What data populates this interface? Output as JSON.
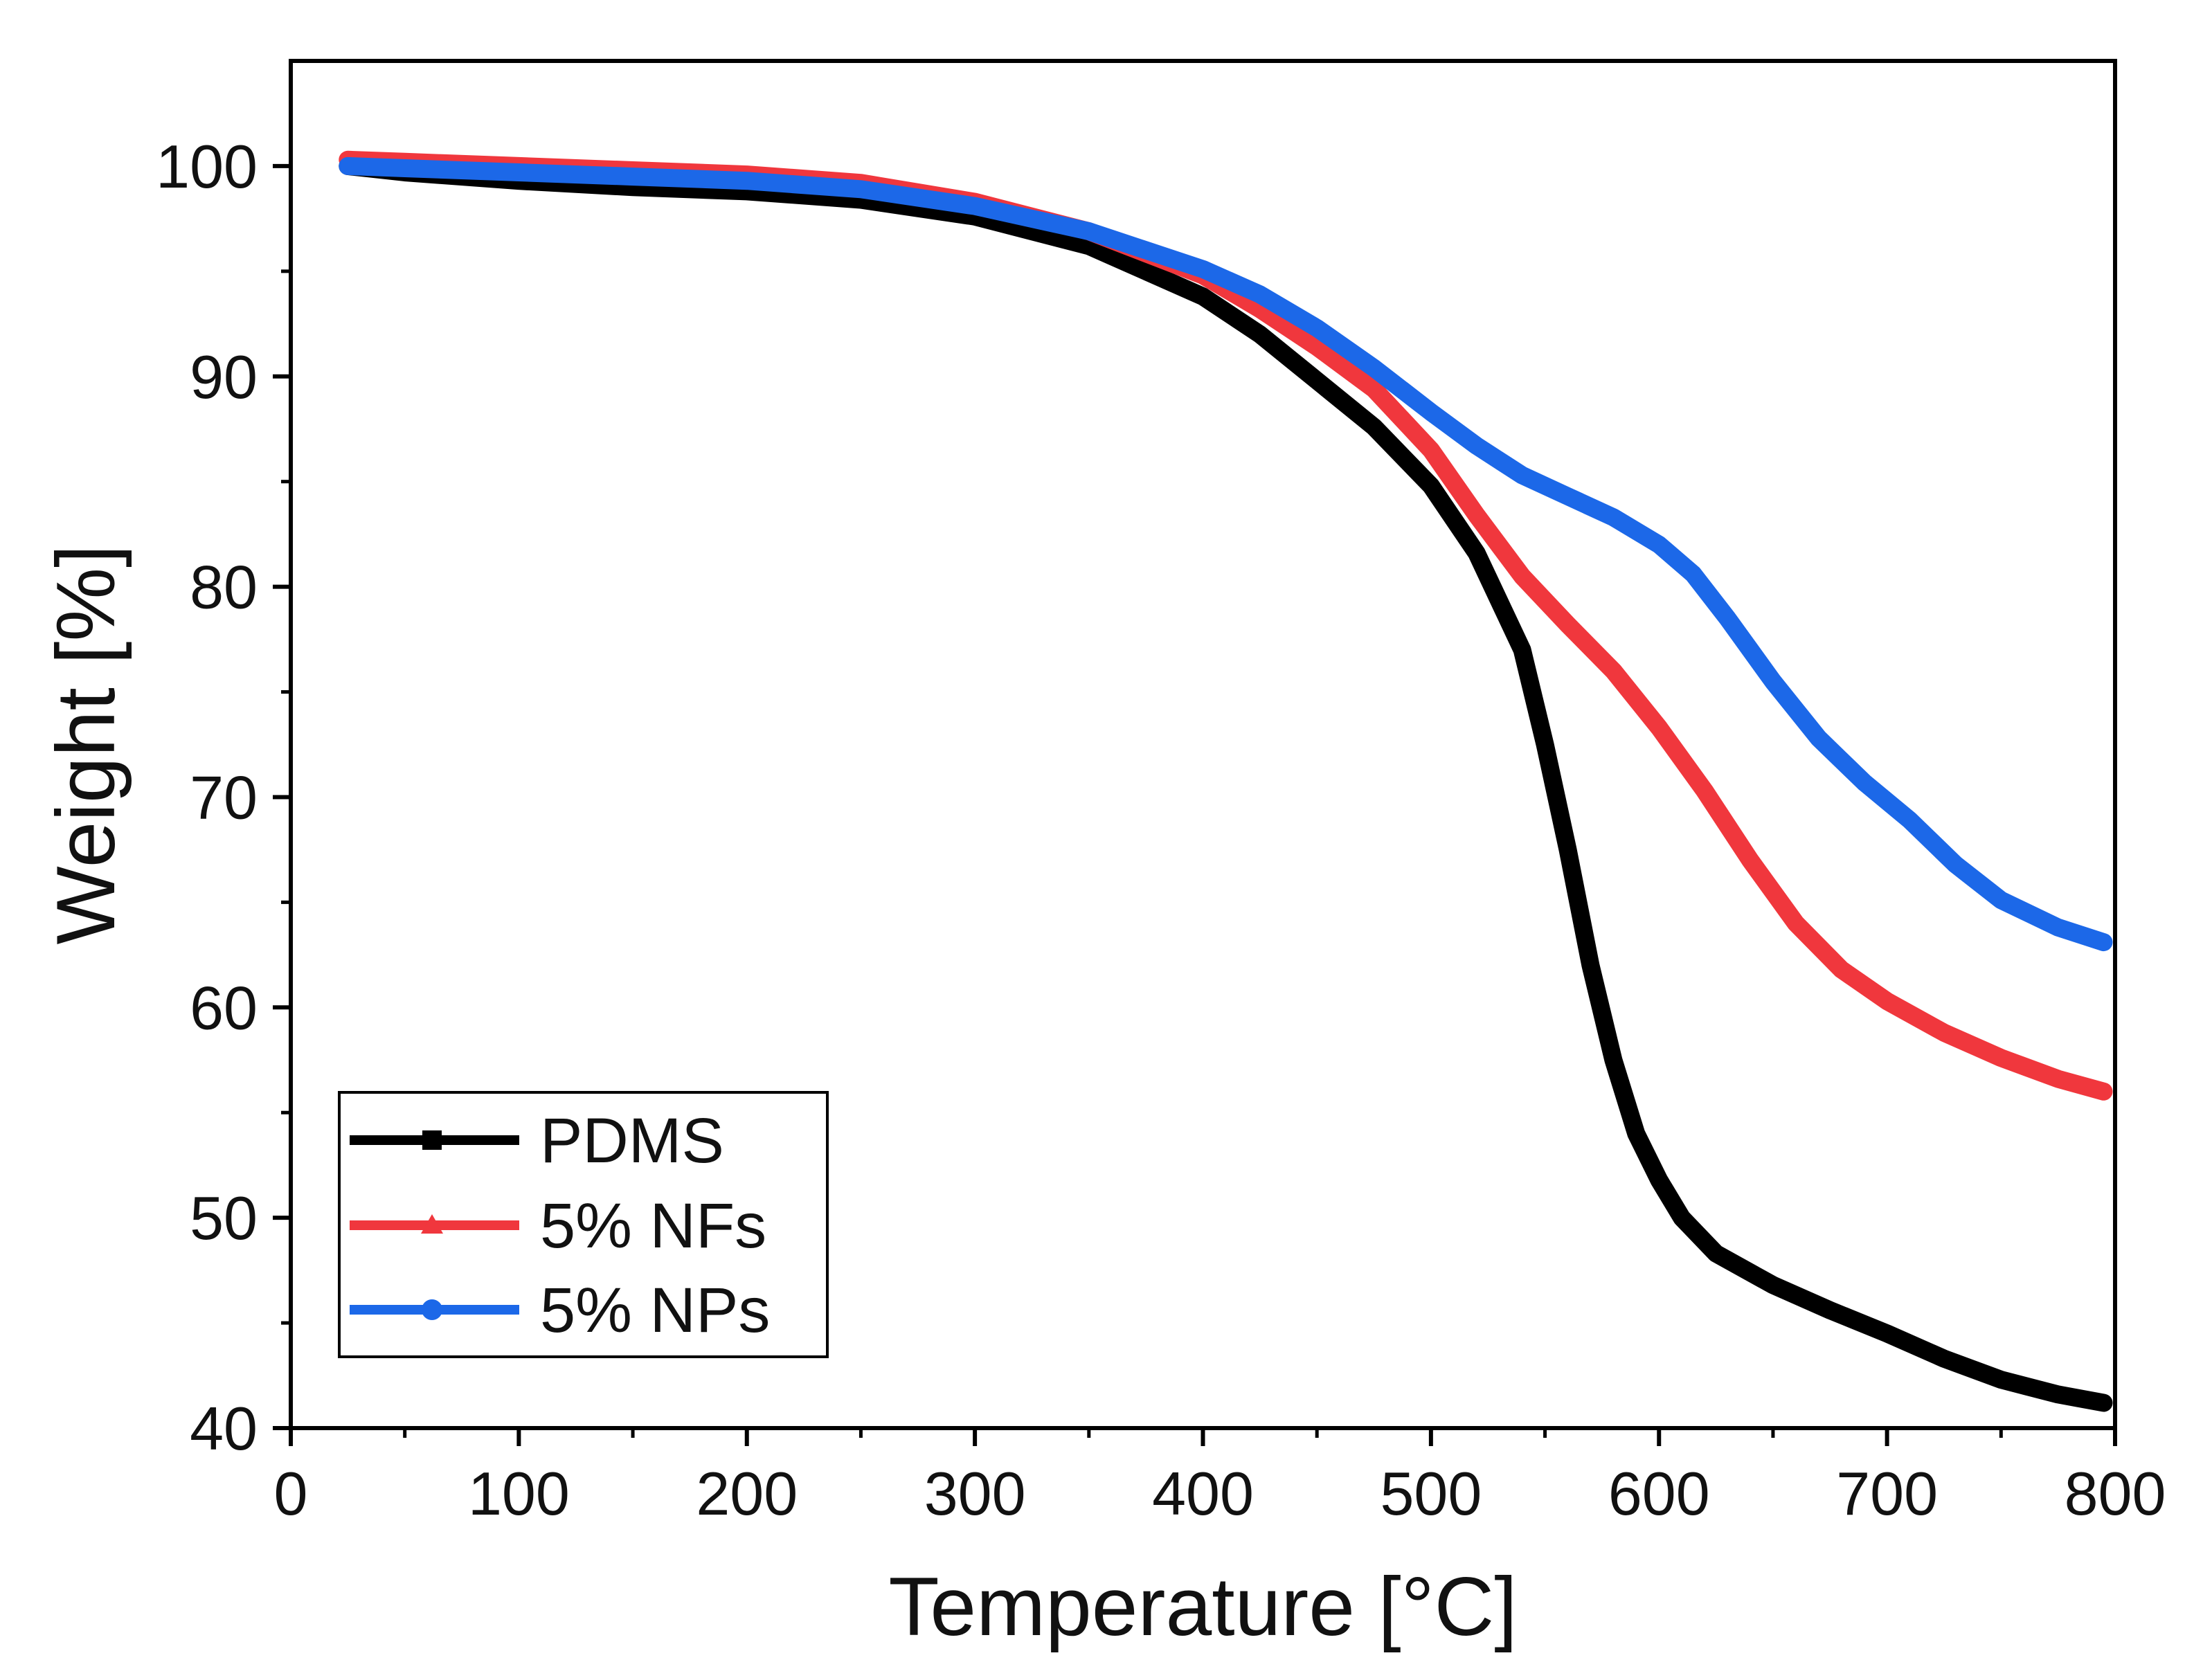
{
  "chart_data": {
    "type": "line",
    "title": "",
    "xlabel": "Temperature [°C]",
    "ylabel": "Weight [%]",
    "xlim": [
      0,
      800
    ],
    "ylim": [
      40,
      105
    ],
    "xticks": [
      0,
      100,
      200,
      300,
      400,
      500,
      600,
      700,
      800
    ],
    "yticks": [
      40,
      50,
      60,
      70,
      80,
      90,
      100
    ],
    "grid": false,
    "legend_position": "bottom-left",
    "series": [
      {
        "name": "PDMS",
        "color": "#000000",
        "marker": "square",
        "points": [
          [
            25,
            100
          ],
          [
            50,
            99.7
          ],
          [
            100,
            99.3
          ],
          [
            150,
            99.0
          ],
          [
            200,
            98.8
          ],
          [
            250,
            98.4
          ],
          [
            300,
            97.6
          ],
          [
            350,
            96.2
          ],
          [
            400,
            93.8
          ],
          [
            425,
            92.0
          ],
          [
            450,
            89.8
          ],
          [
            475,
            87.6
          ],
          [
            500,
            84.8
          ],
          [
            520,
            81.6
          ],
          [
            540,
            77.0
          ],
          [
            550,
            72.5
          ],
          [
            560,
            67.5
          ],
          [
            570,
            62.0
          ],
          [
            580,
            57.5
          ],
          [
            590,
            54.0
          ],
          [
            600,
            51.8
          ],
          [
            610,
            50.0
          ],
          [
            625,
            48.3
          ],
          [
            650,
            46.8
          ],
          [
            675,
            45.6
          ],
          [
            700,
            44.5
          ],
          [
            725,
            43.3
          ],
          [
            750,
            42.3
          ],
          [
            775,
            41.6
          ],
          [
            795,
            41.2
          ]
        ]
      },
      {
        "name": "5% NFs",
        "color": "#f0373d",
        "marker": "triangle",
        "points": [
          [
            25,
            100.3
          ],
          [
            50,
            100.2
          ],
          [
            100,
            100.0
          ],
          [
            150,
            99.8
          ],
          [
            200,
            99.6
          ],
          [
            250,
            99.2
          ],
          [
            300,
            98.3
          ],
          [
            350,
            96.9
          ],
          [
            400,
            94.8
          ],
          [
            425,
            93.2
          ],
          [
            450,
            91.4
          ],
          [
            475,
            89.4
          ],
          [
            500,
            86.5
          ],
          [
            520,
            83.4
          ],
          [
            540,
            80.5
          ],
          [
            560,
            78.2
          ],
          [
            580,
            76.0
          ],
          [
            600,
            73.3
          ],
          [
            620,
            70.3
          ],
          [
            640,
            67.0
          ],
          [
            660,
            64.0
          ],
          [
            680,
            61.8
          ],
          [
            700,
            60.3
          ],
          [
            725,
            58.8
          ],
          [
            750,
            57.6
          ],
          [
            775,
            56.6
          ],
          [
            795,
            56.0
          ]
        ]
      },
      {
        "name": "5% NPs",
        "color": "#1c68e8",
        "marker": "circle",
        "points": [
          [
            25,
            100
          ],
          [
            50,
            99.9
          ],
          [
            100,
            99.7
          ],
          [
            150,
            99.5
          ],
          [
            200,
            99.3
          ],
          [
            250,
            98.9
          ],
          [
            300,
            98.1
          ],
          [
            350,
            96.9
          ],
          [
            400,
            95.1
          ],
          [
            425,
            93.9
          ],
          [
            450,
            92.3
          ],
          [
            475,
            90.4
          ],
          [
            500,
            88.3
          ],
          [
            520,
            86.7
          ],
          [
            540,
            85.3
          ],
          [
            560,
            84.3
          ],
          [
            580,
            83.3
          ],
          [
            600,
            82.0
          ],
          [
            615,
            80.6
          ],
          [
            630,
            78.5
          ],
          [
            650,
            75.5
          ],
          [
            670,
            72.8
          ],
          [
            690,
            70.7
          ],
          [
            710,
            68.9
          ],
          [
            730,
            66.8
          ],
          [
            750,
            65.1
          ],
          [
            775,
            63.8
          ],
          [
            795,
            63.1
          ]
        ]
      }
    ]
  }
}
